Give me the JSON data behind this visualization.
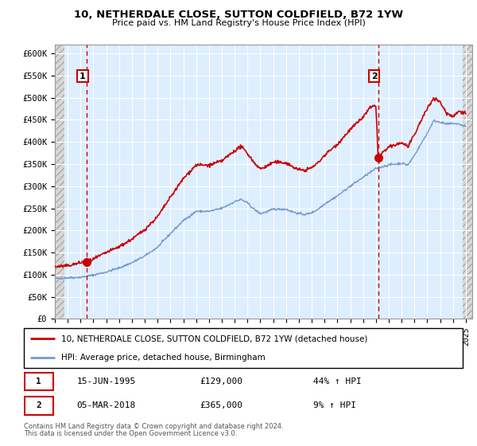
{
  "title1": "10, NETHERDALE CLOSE, SUTTON COLDFIELD, B72 1YW",
  "title2": "Price paid vs. HM Land Registry's House Price Index (HPI)",
  "ylim": [
    0,
    620000
  ],
  "xlim_start": 1993.0,
  "xlim_end": 2025.5,
  "yticks": [
    0,
    50000,
    100000,
    150000,
    200000,
    250000,
    300000,
    350000,
    400000,
    450000,
    500000,
    550000,
    600000
  ],
  "ytick_labels": [
    "£0",
    "£50K",
    "£100K",
    "£150K",
    "£200K",
    "£250K",
    "£300K",
    "£350K",
    "£400K",
    "£450K",
    "£500K",
    "£550K",
    "£600K"
  ],
  "xtick_years": [
    1993,
    1994,
    1995,
    1996,
    1997,
    1998,
    1999,
    2000,
    2001,
    2002,
    2003,
    2004,
    2005,
    2006,
    2007,
    2008,
    2009,
    2010,
    2011,
    2012,
    2013,
    2014,
    2015,
    2016,
    2017,
    2018,
    2019,
    2020,
    2021,
    2022,
    2023,
    2024,
    2025
  ],
  "property_color": "#cc0000",
  "hpi_color": "#7799cc",
  "sale1_date": 1995.46,
  "sale1_price": 129000,
  "sale1_label": "1",
  "sale2_date": 2018.17,
  "sale2_price": 365000,
  "sale2_label": "2",
  "legend_line1": "10, NETHERDALE CLOSE, SUTTON COLDFIELD, B72 1YW (detached house)",
  "legend_line2": "HPI: Average price, detached house, Birmingham",
  "annotation1_date": "15-JUN-1995",
  "annotation1_price": "£129,000",
  "annotation1_hpi": "44% ↑ HPI",
  "annotation2_date": "05-MAR-2018",
  "annotation2_price": "£365,000",
  "annotation2_hpi": "9% ↑ HPI",
  "footer1": "Contains HM Land Registry data © Crown copyright and database right 2024.",
  "footer2": "This data is licensed under the Open Government Licence v3.0.",
  "bg_color": "#ddeeff",
  "hatch_bg": "#d8d8d8",
  "grid_color": "#ffffff"
}
